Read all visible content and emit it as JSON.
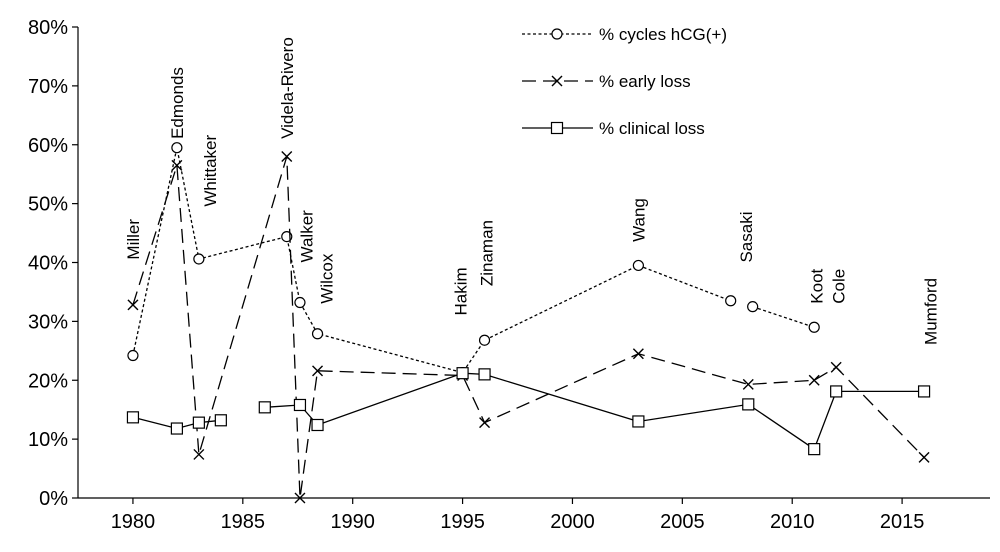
{
  "chart_data": {
    "type": "line",
    "title": "",
    "xlabel": "",
    "ylabel": "",
    "xlim": [
      1977.5,
      2019
    ],
    "ylim": [
      0,
      0.8
    ],
    "x_ticks": [
      1980,
      1985,
      1990,
      1995,
      2000,
      2005,
      2010,
      2015
    ],
    "x_tick_labels": [
      "1980",
      "1985",
      "1990",
      "1995",
      "2000",
      "2005",
      "2010",
      "2015"
    ],
    "y_ticks": [
      0,
      0.1,
      0.2,
      0.3,
      0.4,
      0.5,
      0.6,
      0.7,
      0.8
    ],
    "y_tick_labels": [
      "0%",
      "10%",
      "20%",
      "30%",
      "40%",
      "50%",
      "60%",
      "70%",
      "80%"
    ],
    "grid": false,
    "legend_position": "top-right",
    "series": [
      {
        "name": "% cycles hCG(+)",
        "style": "dotted",
        "marker": "circle",
        "segments": [
          [
            [
              1980,
              0.242
            ],
            [
              1982,
              0.595
            ],
            [
              1983,
              0.406
            ],
            [
              1987,
              0.444
            ],
            [
              1987.6,
              0.332
            ],
            [
              1988.4,
              0.279
            ],
            [
              1995,
              0.213
            ],
            [
              1996,
              0.268
            ],
            [
              2003,
              0.395
            ],
            [
              2007.2,
              0.335
            ]
          ],
          [
            [
              2008.2,
              0.325
            ],
            [
              2011,
              0.29
            ]
          ]
        ]
      },
      {
        "name": "% early loss",
        "style": "dashed",
        "marker": "x",
        "segments": [
          [
            [
              1980,
              0.328
            ],
            [
              1982,
              0.565
            ],
            [
              1983,
              0.074
            ],
            [
              1987,
              0.58
            ],
            [
              1987.6,
              0.0
            ],
            [
              1988.4,
              0.216
            ],
            [
              1995,
              0.208
            ],
            [
              1996,
              0.128
            ],
            [
              2003,
              0.245
            ],
            [
              2008,
              0.193
            ],
            [
              2011,
              0.2
            ],
            [
              2012,
              0.222
            ],
            [
              2016,
              0.069
            ]
          ]
        ]
      },
      {
        "name": "% clinical loss",
        "style": "solid",
        "marker": "square",
        "segments": [
          [
            [
              1980,
              0.137
            ],
            [
              1982,
              0.118
            ],
            [
              1983,
              0.128
            ],
            [
              1984,
              0.132
            ]
          ],
          [
            [
              1986,
              0.154
            ],
            [
              1987.6,
              0.158
            ],
            [
              1988.4,
              0.124
            ],
            [
              1995,
              0.212
            ],
            [
              1996,
              0.21
            ],
            [
              2003,
              0.13
            ],
            [
              2008,
              0.159
            ],
            [
              2011,
              0.083
            ],
            [
              2012,
              0.181
            ],
            [
              2016,
              0.181
            ]
          ]
        ]
      }
    ],
    "annotations": [
      {
        "text": "Miller",
        "x": 1980,
        "y": 0.405
      },
      {
        "text": "Edmonds",
        "x": 1982,
        "y": 0.61
      },
      {
        "text": "Whittaker",
        "x": 1983.5,
        "y": 0.495
      },
      {
        "text": "Videla-Rivero",
        "x": 1987,
        "y": 0.61
      },
      {
        "text": "Walker",
        "x": 1987.9,
        "y": 0.4
      },
      {
        "text": "Wilcox",
        "x": 1988.8,
        "y": 0.33
      },
      {
        "text": "Hakim",
        "x": 1994.9,
        "y": 0.31
      },
      {
        "text": "Zinaman",
        "x": 1996.1,
        "y": 0.36
      },
      {
        "text": "Wang",
        "x": 2003,
        "y": 0.435
      },
      {
        "text": "Sasaki",
        "x": 2007.9,
        "y": 0.4
      },
      {
        "text": "Koot",
        "x": 2011.1,
        "y": 0.33
      },
      {
        "text": "Cole",
        "x": 2012.1,
        "y": 0.33
      },
      {
        "text": "Mumford",
        "x": 2016.3,
        "y": 0.26
      }
    ]
  }
}
